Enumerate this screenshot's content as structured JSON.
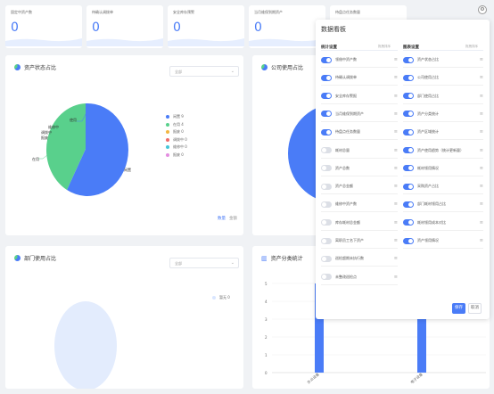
{
  "stats": [
    {
      "label": "固定中资产数",
      "value": "0"
    },
    {
      "label": "待确认调拨单",
      "value": "0"
    },
    {
      "label": "安全库存预警",
      "value": "0"
    },
    {
      "label": "当月维保到期资产",
      "value": "0"
    },
    {
      "label": "待盘点任务数量",
      "value": "0"
    }
  ],
  "status_panel": {
    "title": "资产状态占比",
    "select_value": "全部",
    "callouts": [
      "使用",
      "维修中",
      "调拨中",
      "报废",
      "在用",
      "闲置"
    ],
    "legend": [
      {
        "label": "闲置 9",
        "color": "#4a7cf7"
      },
      {
        "label": "在用 4",
        "color": "#59d08c"
      },
      {
        "label": "报废 0",
        "color": "#f2b642"
      },
      {
        "label": "调拨中 0",
        "color": "#ef6b6b"
      },
      {
        "label": "维修中 0",
        "color": "#44c5d8"
      },
      {
        "label": "报废 0",
        "color": "#e38ee0"
      }
    ],
    "link_count": "数量",
    "link_all": "金额"
  },
  "company_panel": {
    "title": "公司使用占比"
  },
  "dept_panel": {
    "title": "部门使用占比",
    "select_value": "全部",
    "legend": [
      {
        "label": "暂无 0",
        "color": "#d9e6ff"
      }
    ]
  },
  "category_panel": {
    "title": "资产分类统计",
    "y_ticks": [
      "5",
      "4",
      "3",
      "2",
      "1",
      "0"
    ],
    "x_labels": [
      "办公设备",
      "电子设备"
    ]
  },
  "settings": {
    "title": "数据看板",
    "left_head": "统计设置",
    "left_hint": "拖拽排序",
    "right_head": "图表设置",
    "right_hint": "拖拽排序",
    "left_items": [
      {
        "label": "领借中资产数",
        "on": true
      },
      {
        "label": "待确认调拨单",
        "on": true
      },
      {
        "label": "安全库存警报",
        "on": true
      },
      {
        "label": "当月维保到期资产",
        "on": true
      },
      {
        "label": "待盘点任务数量",
        "on": true
      },
      {
        "label": "耗材总量",
        "on": false
      },
      {
        "label": "资产总数",
        "on": false
      },
      {
        "label": "资产总金额",
        "on": false
      },
      {
        "label": "维修中资产数",
        "on": false
      },
      {
        "label": "库存耗材总金额",
        "on": false
      },
      {
        "label": "离职员工名下资产",
        "on": false
      },
      {
        "label": "巡检超期未执行数",
        "on": false
      },
      {
        "label": "未整改巡检点",
        "on": false
      }
    ],
    "right_items": [
      {
        "label": "资产状态占比",
        "on": true
      },
      {
        "label": "公司使用占比",
        "on": true
      },
      {
        "label": "部门使用占比",
        "on": true
      },
      {
        "label": "资产分类统计",
        "on": true
      },
      {
        "label": "资产区域统计",
        "on": true
      },
      {
        "label": "资产使用趋势（统计更新量）",
        "on": true
      },
      {
        "label": "耗材领用情况",
        "on": true
      },
      {
        "label": "采购资产占比",
        "on": true
      },
      {
        "label": "部门耗材领用占比",
        "on": true
      },
      {
        "label": "耗材领用成本对比",
        "on": true
      },
      {
        "label": "资产领用情况",
        "on": true
      }
    ],
    "save": "保存",
    "cancel": "取消"
  }
}
